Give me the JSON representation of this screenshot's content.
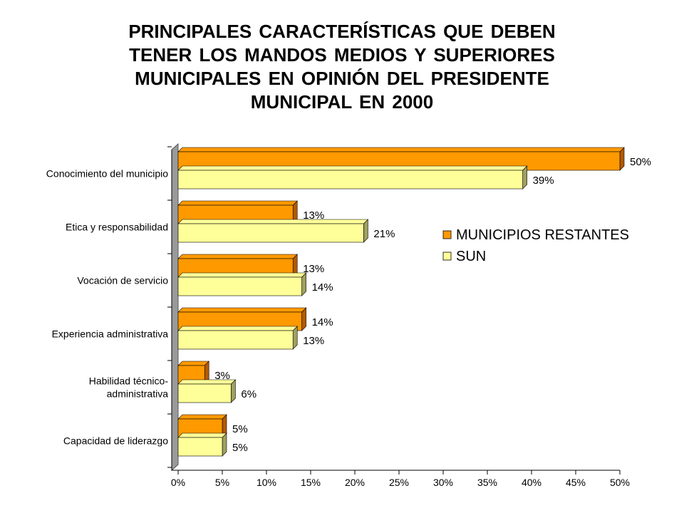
{
  "title_lines": [
    "PRINCIPALES CARACTERÍSTICAS QUE DEBEN",
    "TENER LOS MANDOS MEDIOS Y SUPERIORES",
    "MUNICIPALES  EN OPINIÓN DEL PRESIDENTE",
    "MUNICIPAL EN 2000"
  ],
  "chart_data": {
    "type": "bar",
    "orientation": "horizontal",
    "categories": [
      [
        "Conocimiento del municipio"
      ],
      [
        "Etica y responsabilidad"
      ],
      [
        "Vocación de servicio"
      ],
      [
        "Experiencia administrativa"
      ],
      [
        "Habilidad técnico-",
        "administrativa"
      ],
      [
        "Capacidad  de liderazgo"
      ]
    ],
    "series": [
      {
        "name": "MUNICIPIOS RESTANTES",
        "values": [
          50,
          13,
          13,
          14,
          3,
          5
        ],
        "labels": [
          "50%",
          "13%",
          "13%",
          "14%",
          "3%",
          "5%"
        ],
        "color": "#ff9900",
        "side_color": "#b35a00"
      },
      {
        "name": "SUN",
        "values": [
          39,
          21,
          14,
          13,
          6,
          5
        ],
        "labels": [
          "39%",
          "21%",
          "14%",
          "13%",
          "6%",
          "5%"
        ],
        "color": "#ffff99",
        "side_color": "#a0a060"
      }
    ],
    "xlim": [
      0,
      50
    ],
    "x_ticks": [
      "0%",
      "5%",
      "10%",
      "15%",
      "20%",
      "25%",
      "30%",
      "35%",
      "40%",
      "45%",
      "50%"
    ],
    "legend_position": "right",
    "grid": false,
    "3d": true
  }
}
